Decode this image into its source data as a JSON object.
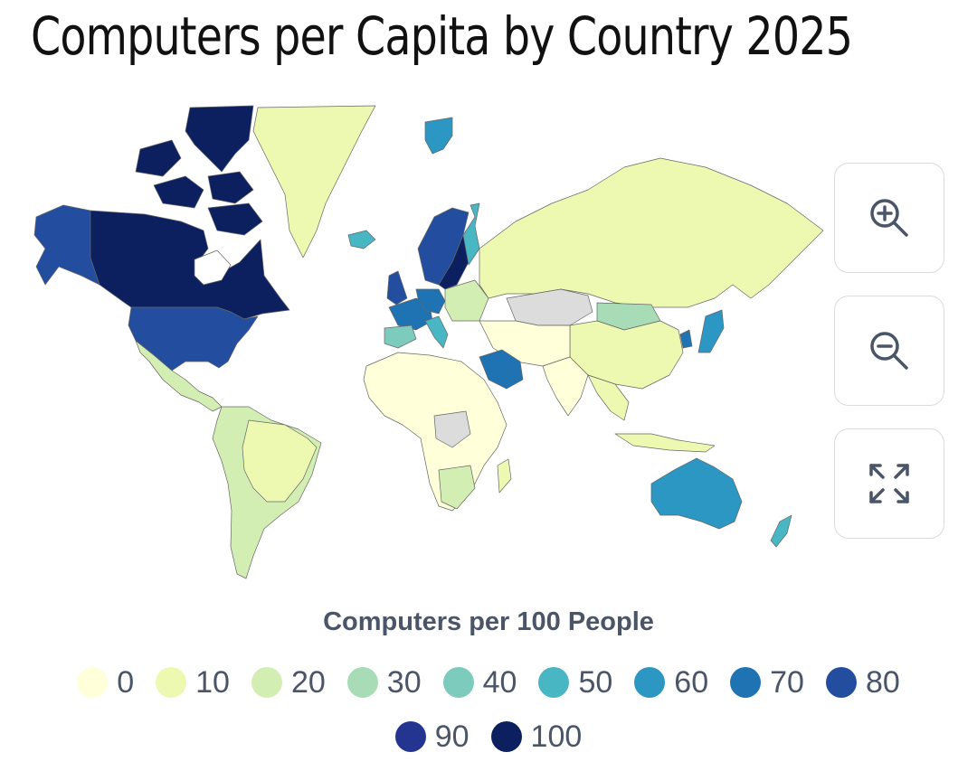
{
  "title": "Computers per Capita by Country 2025",
  "legend": {
    "title": "Computers per 100 People",
    "rows": [
      [
        {
          "label": "0",
          "color": "#ffffd9"
        },
        {
          "label": "10",
          "color": "#edf8b1"
        },
        {
          "label": "20",
          "color": "#d3eeb3"
        },
        {
          "label": "30",
          "color": "#a8dcb6"
        },
        {
          "label": "40",
          "color": "#7ccbbd"
        },
        {
          "label": "50",
          "color": "#49b6c4"
        },
        {
          "label": "60",
          "color": "#2b97c2"
        },
        {
          "label": "70",
          "color": "#2073b2"
        },
        {
          "label": "80",
          "color": "#234ea0"
        }
      ],
      [
        {
          "label": "90",
          "color": "#233591"
        },
        {
          "label": "100",
          "color": "#0c1f5f"
        }
      ]
    ]
  },
  "controls": {
    "zoom_in": "zoom-in-icon",
    "zoom_out": "zoom-out-icon",
    "fullscreen": "fullscreen-icon"
  },
  "colors": {
    "no_data": "#dcdcdc",
    "border": "#666666"
  }
}
